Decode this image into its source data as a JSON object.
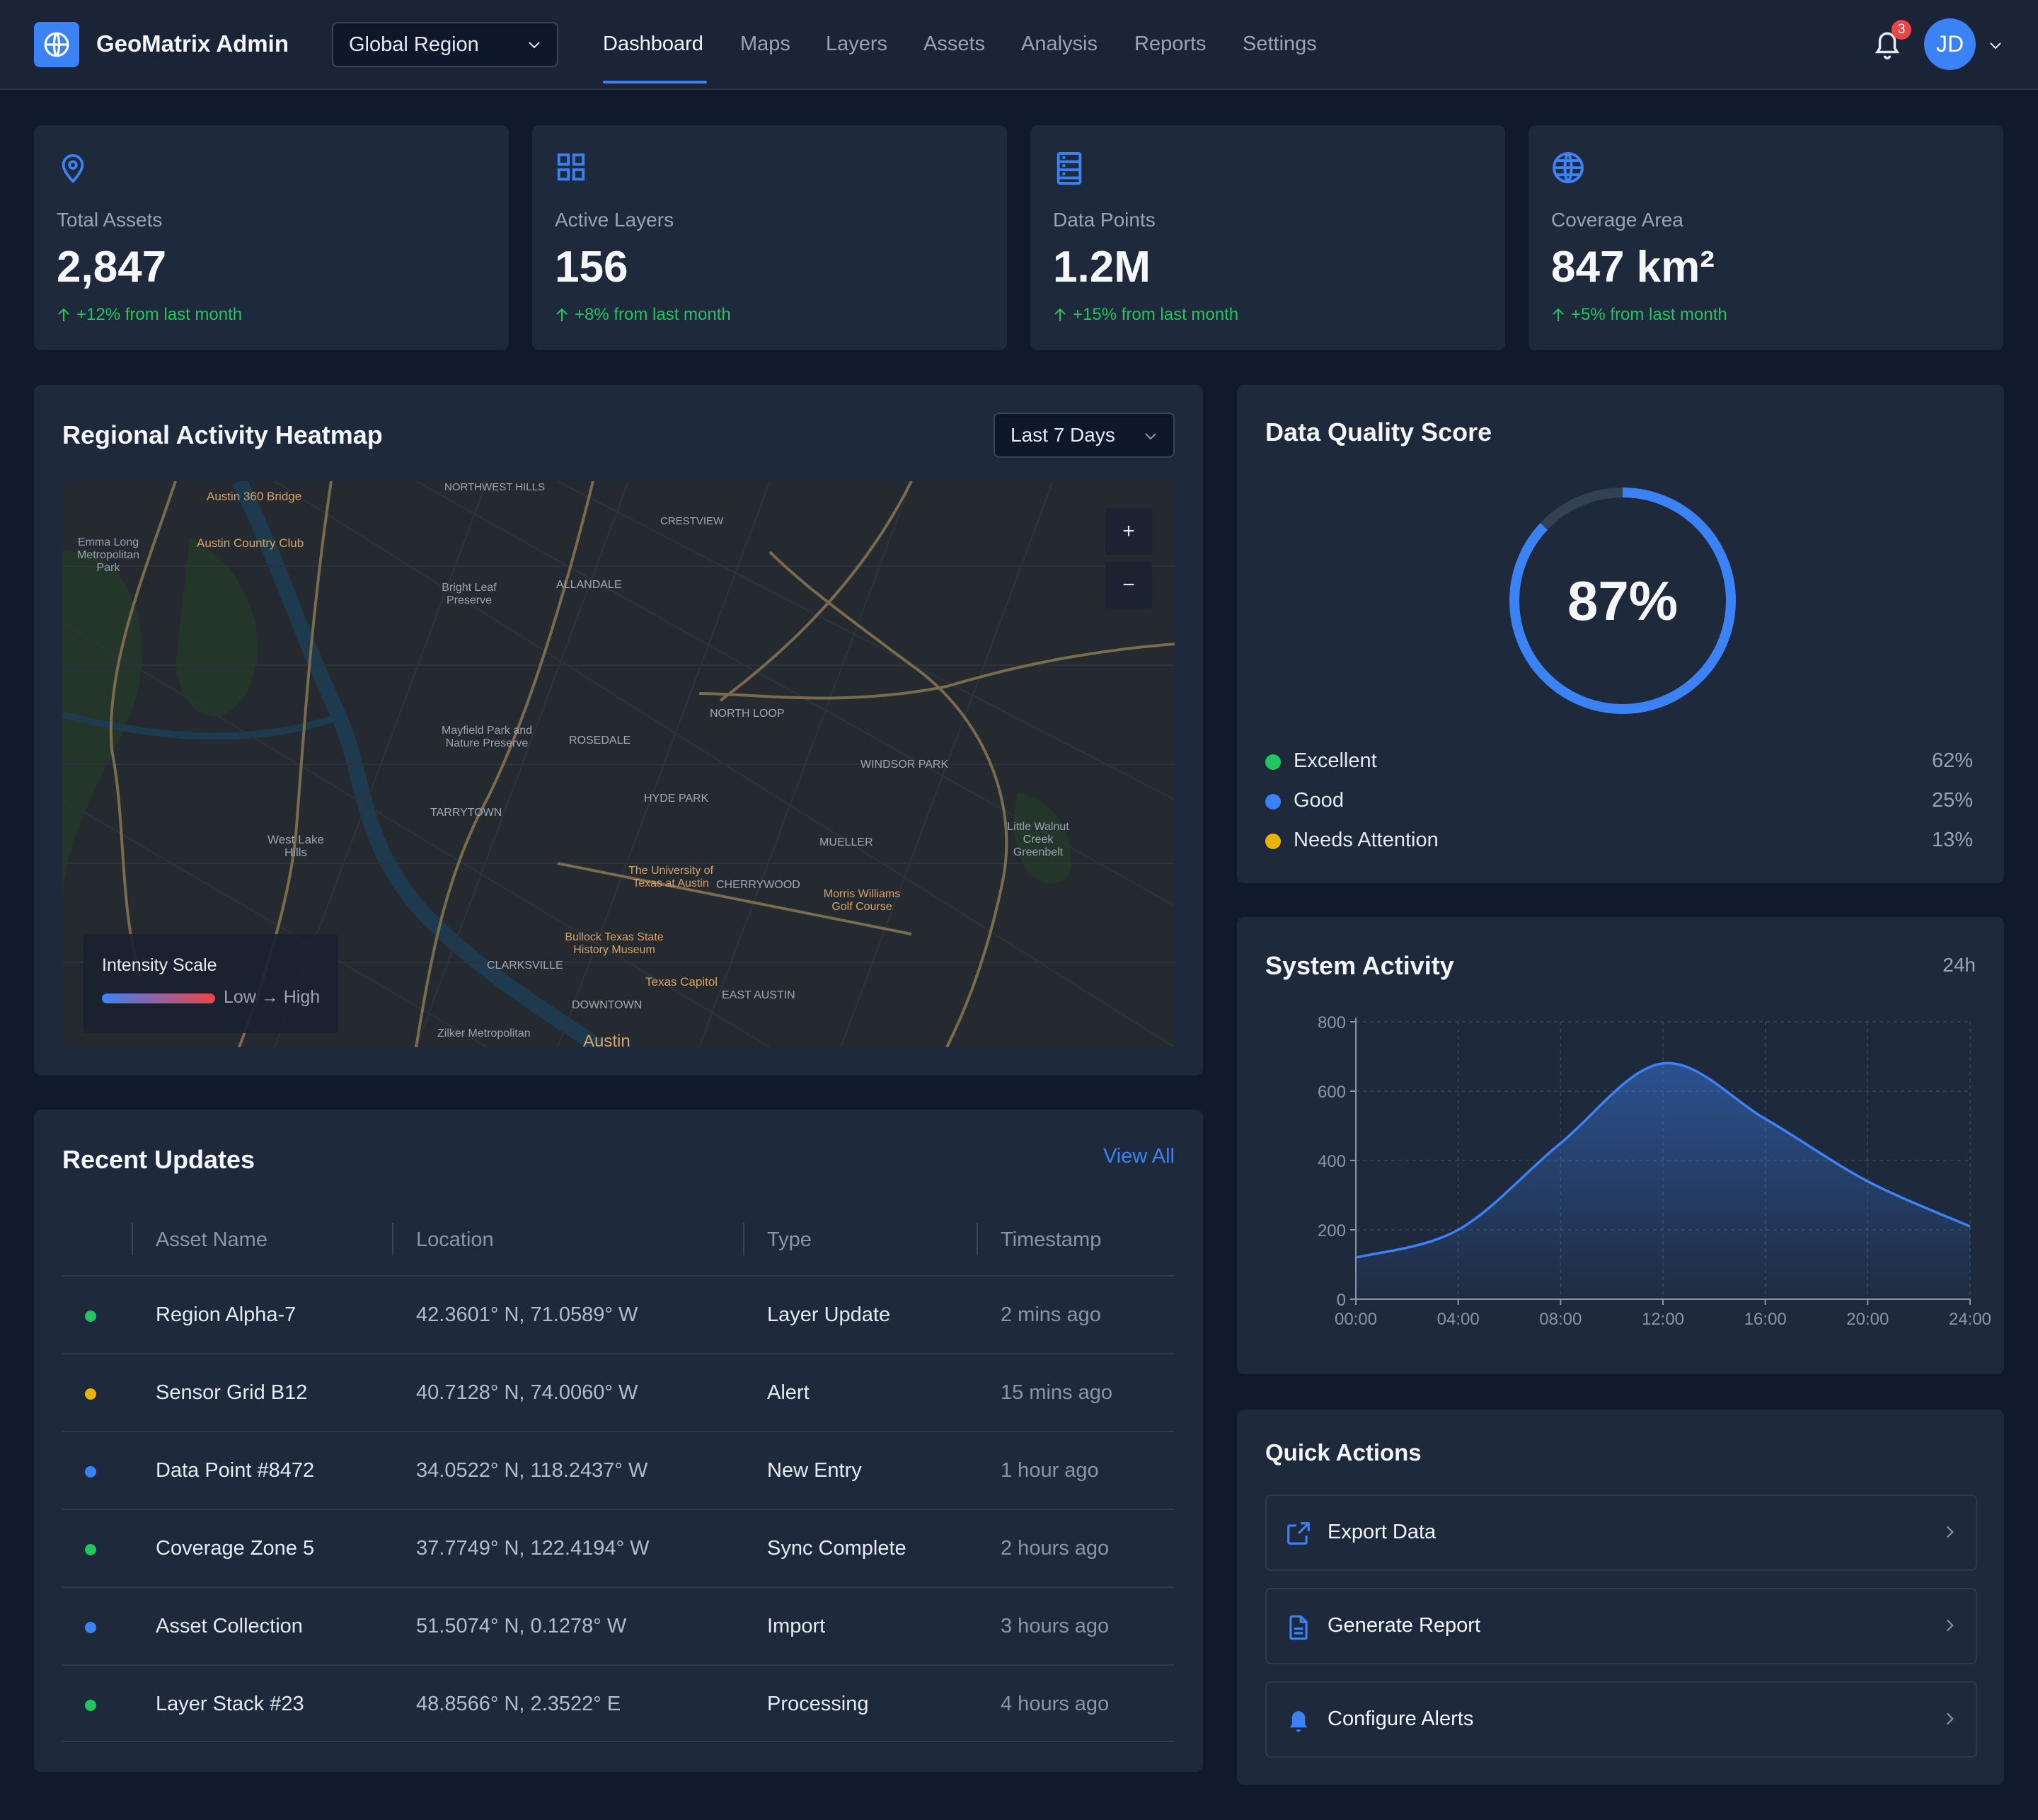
{
  "app": {
    "title": "GeoMatrix Admin",
    "region": "Global Region"
  },
  "nav": [
    {
      "label": "Dashboard",
      "active": true
    },
    {
      "label": "Maps"
    },
    {
      "label": "Layers"
    },
    {
      "label": "Assets"
    },
    {
      "label": "Analysis"
    },
    {
      "label": "Reports"
    },
    {
      "label": "Settings"
    }
  ],
  "user": {
    "notifications": "3",
    "initials": "JD"
  },
  "stats": [
    {
      "icon": "map-pin-icon",
      "label": "Total Assets",
      "value": "2,847",
      "trend": "+12% from last month"
    },
    {
      "icon": "grid-icon",
      "label": "Active Layers",
      "value": "156",
      "trend": "+8% from last month"
    },
    {
      "icon": "database-icon",
      "label": "Data Points",
      "value": "1.2M",
      "trend": "+15% from last month"
    },
    {
      "icon": "globe-icon",
      "label": "Coverage Area",
      "value": "847 km²",
      "trend": "+5% from last month"
    }
  ],
  "heatmap": {
    "title": "Regional Activity Heatmap",
    "range": "Last 7 Days",
    "zoom_in": "+",
    "zoom_out": "−",
    "legend_title": "Intensity Scale",
    "legend_range": "Low → High",
    "map_labels": [
      "Austin 360 Bridge",
      "NORTHWEST HILLS",
      "CRESTVIEW",
      "Emma Long Metropolitan Park",
      "Austin Country Club",
      "ALLANDALE",
      "Bright Leaf Preserve",
      "NORTH LOOP",
      "ROSEDALE",
      "Mayfield Park and Nature Preserve",
      "WINDSOR PARK",
      "HYDE PARK",
      "TARRYTOWN",
      "MUELLER",
      "Little Walnut Creek Greenbelt",
      "West Lake Hills",
      "The University of Texas at Austin",
      "CHERRYWOOD",
      "Morris Williams Golf Course",
      "Bullock Texas State History Museum",
      "CLARKSVILLE",
      "Texas Capitol",
      "EAST AUSTIN",
      "DOWNTOWN",
      "Zilker Metropolitan",
      "Austin"
    ]
  },
  "quality": {
    "title": "Data Quality Score",
    "score": "87%",
    "score_value": 87,
    "items": [
      {
        "label": "Excellent",
        "value": "62%",
        "color": "#22c55e"
      },
      {
        "label": "Good",
        "value": "25%",
        "color": "#3b82f6"
      },
      {
        "label": "Needs Attention",
        "value": "13%",
        "color": "#eab308"
      }
    ]
  },
  "activity": {
    "title": "System Activity",
    "period": "24h",
    "chart_data": {
      "type": "area",
      "x": [
        "00:00",
        "04:00",
        "08:00",
        "12:00",
        "16:00",
        "20:00",
        "24:00"
      ],
      "y_ticks": [
        0,
        200,
        400,
        600,
        800
      ],
      "ylim": [
        0,
        800
      ],
      "series": [
        {
          "values": [
            120,
            200,
            450,
            680,
            520,
            340,
            210
          ]
        }
      ],
      "grid": true,
      "color": "#3b82f6"
    }
  },
  "updates": {
    "title": "Recent Updates",
    "view_all": "View All",
    "columns": [
      "Asset Name",
      "Location",
      "Type",
      "Timestamp"
    ],
    "rows": [
      {
        "status": "#22c55e",
        "name": "Region Alpha-7",
        "location": "42.3601° N, 71.0589° W",
        "type": "Layer Update",
        "time": "2 mins ago"
      },
      {
        "status": "#eab308",
        "name": "Sensor Grid B12",
        "location": "40.7128° N, 74.0060° W",
        "type": "Alert",
        "time": "15 mins ago"
      },
      {
        "status": "#3b82f6",
        "name": "Data Point #8472",
        "location": "34.0522° N, 118.2437° W",
        "type": "New Entry",
        "time": "1 hour ago"
      },
      {
        "status": "#22c55e",
        "name": "Coverage Zone 5",
        "location": "37.7749° N, 122.4194° W",
        "type": "Sync Complete",
        "time": "2 hours ago"
      },
      {
        "status": "#3b82f6",
        "name": "Asset Collection",
        "location": "51.5074° N, 0.1278° W",
        "type": "Import",
        "time": "3 hours ago"
      },
      {
        "status": "#22c55e",
        "name": "Layer Stack #23",
        "location": "48.8566° N, 2.3522° E",
        "type": "Processing",
        "time": "4 hours ago"
      }
    ]
  },
  "quick_actions": {
    "title": "Quick Actions",
    "items": [
      {
        "icon": "export-icon",
        "label": "Export Data"
      },
      {
        "icon": "report-icon",
        "label": "Generate Report"
      },
      {
        "icon": "bell-icon",
        "label": "Configure Alerts"
      }
    ]
  }
}
